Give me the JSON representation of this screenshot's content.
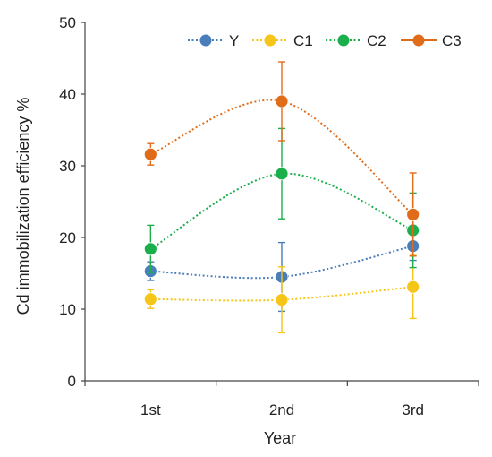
{
  "chart_data": {
    "type": "line",
    "title": "",
    "xlabel": "Year",
    "ylabel": "Cd immobilization efficiency  %",
    "categories": [
      "1st",
      "2nd",
      "3rd"
    ],
    "ylim": [
      0,
      50
    ],
    "yticks": [
      0,
      10,
      20,
      30,
      40,
      50
    ],
    "grid": false,
    "legend": "top-right",
    "line_style": "dotted",
    "smooth": true,
    "series": [
      {
        "name": "Y",
        "color": "#4A7EBB",
        "values": [
          15.3,
          14.5,
          18.8
        ],
        "errors": [
          1.3,
          4.8,
          2.0
        ]
      },
      {
        "name": "C1",
        "color": "#F5C518",
        "values": [
          11.4,
          11.3,
          13.1
        ],
        "errors": [
          1.3,
          4.6,
          4.4
        ]
      },
      {
        "name": "C2",
        "color": "#1BAF4B",
        "values": [
          18.4,
          28.9,
          21.0
        ],
        "errors": [
          3.3,
          6.3,
          5.2
        ]
      },
      {
        "name": "C3",
        "color": "#E06C1A",
        "values": [
          31.6,
          39.0,
          23.2
        ],
        "errors": [
          1.5,
          5.5,
          5.8
        ]
      }
    ]
  }
}
